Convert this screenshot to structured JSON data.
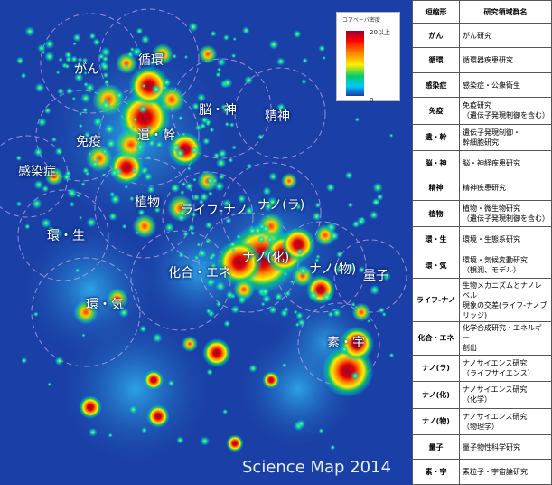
{
  "map": {
    "caption": "Science Map 2014",
    "legend": {
      "title": "コアペーパ密度",
      "max_label": "20以上",
      "min_label": "0",
      "gradient_colors": [
        "#1a3fa6",
        "#00c8ff",
        "#00cc66",
        "#ffee00",
        "#ff8800",
        "#ff0000",
        "#990033"
      ]
    },
    "background_color": "#1a3fa6",
    "regions": [
      {
        "label": "がん"
      },
      {
        "label": "循環"
      },
      {
        "label": "脳・神"
      },
      {
        "label": "精神"
      },
      {
        "label": "免疫"
      },
      {
        "label": "遺・幹"
      },
      {
        "label": "感染症"
      },
      {
        "label": "植物"
      },
      {
        "label": "ライフ-ナノ"
      },
      {
        "label": "ナノ(ラ)"
      },
      {
        "label": "環・生"
      },
      {
        "label": "ナノ(化)"
      },
      {
        "label": "ナノ(物)"
      },
      {
        "label": "量子"
      },
      {
        "label": "化合・エネ"
      },
      {
        "label": "環・気"
      },
      {
        "label": "素・宇"
      }
    ]
  },
  "table": {
    "header": {
      "abbr": "短縮形",
      "name": "研究領域群名"
    },
    "rows": [
      {
        "abbr": "がん",
        "name": "がん研究"
      },
      {
        "abbr": "循環",
        "name": "循環器疾患研究"
      },
      {
        "abbr": "感染症",
        "name": "感染症・公衆衛生"
      },
      {
        "abbr": "免疫",
        "name": "免疫研究\n（遺伝子発現制御を含む）"
      },
      {
        "abbr": "遺・幹",
        "name": "遺伝子発現制御・\n幹細胞研究"
      },
      {
        "abbr": "脳・神",
        "name": "脳・神経疾患研究"
      },
      {
        "abbr": "精神",
        "name": "精神疾患研究"
      },
      {
        "abbr": "植物",
        "name": "植物・微生物研究\n（遺伝子発現制御を含む）"
      },
      {
        "abbr": "環・生",
        "name": "環境・生態系研究"
      },
      {
        "abbr": "環・気",
        "name": "環境・気候変動研究\n（観測、モデル）"
      },
      {
        "abbr": "ライフ-ナノ",
        "name": "生物メカニズムとナノレベル\n現象の交差(ライフ-ナノブ\nリッジ)"
      },
      {
        "abbr": "化合・エネ",
        "name": "化学合成研究・エネルギー\n創出"
      },
      {
        "abbr": "ナノ(ラ)",
        "name": "ナノサイエンス研究\n（ライフサイエンス）"
      },
      {
        "abbr": "ナノ(化)",
        "name": "ナノサイエンス研究\n（化学）"
      },
      {
        "abbr": "ナノ(物)",
        "name": "ナノサイエンス研究\n（物理学）"
      },
      {
        "abbr": "量子",
        "name": "量子物性科学研究"
      },
      {
        "abbr": "素・宇",
        "name": "素粒子・宇宙論研究"
      }
    ]
  }
}
